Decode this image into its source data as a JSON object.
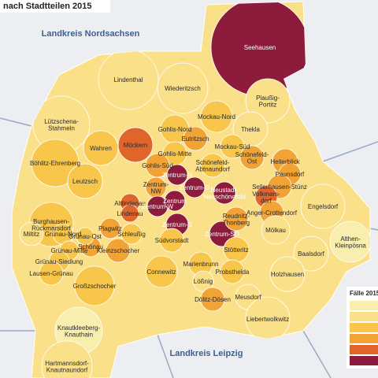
{
  "title": "nach Stadtteilen 2015",
  "regions": [
    "Landkreis Nordsachsen",
    "Landkreis Leipzig"
  ],
  "legend": {
    "title": "Fälle 2015",
    "colors": [
      "#f8eeae",
      "#fbe08a",
      "#f7c64a",
      "#f1a336",
      "#e0652a",
      "#8c1b3c"
    ]
  },
  "districts": [
    {
      "label": [
        "Seehausen"
      ],
      "level": 6
    },
    {
      "label": [
        "Lindenthal"
      ],
      "level": 2
    },
    {
      "label": [
        "Wiederitzsch"
      ],
      "level": 2
    },
    {
      "label": [
        "Plaußig-",
        "Portitz"
      ],
      "level": 2
    },
    {
      "label": [
        "Lützschena-",
        "Stahmeln"
      ],
      "level": 2
    },
    {
      "label": [
        "Mockau-Nord"
      ],
      "level": 3
    },
    {
      "label": [
        "Gohlis-Nord"
      ],
      "level": 3
    },
    {
      "label": [
        "Thekla"
      ],
      "level": 2
    },
    {
      "label": [
        "Möckern"
      ],
      "level": 5
    },
    {
      "label": [
        "Wahren"
      ],
      "level": 3
    },
    {
      "label": [
        "Gohlis-Mitte"
      ],
      "level": 3
    },
    {
      "label": [
        "Eutritzsch"
      ],
      "level": 4
    },
    {
      "label": [
        "Mockau-Süd"
      ],
      "level": 3
    },
    {
      "label": [
        "Schönefeld-",
        "Ost"
      ],
      "level": 4
    },
    {
      "label": [
        "Böhlitz-Ehrenberg"
      ],
      "level": 3
    },
    {
      "label": [
        "Leutzsch"
      ],
      "level": 3
    },
    {
      "label": [
        "Gohlis-Süd"
      ],
      "level": 4
    },
    {
      "label": [
        "Schönefeld-",
        "Abtnaundorf"
      ],
      "level": 3
    },
    {
      "label": [
        "Heiterblick"
      ],
      "level": 4
    },
    {
      "label": [
        "Paunsdorf"
      ],
      "level": 4
    },
    {
      "label": [
        "Sellerhausen-Stünz"
      ],
      "level": 4
    },
    {
      "label": [
        "Engelsdorf"
      ],
      "level": 2
    },
    {
      "label": [
        "Zentrum-N"
      ],
      "level": 6
    },
    {
      "label": [
        "Zentrum-",
        "NW"
      ],
      "level": 4
    },
    {
      "label": [
        "Zentrum-O"
      ],
      "level": 6
    },
    {
      "label": [
        "Neustadt-",
        "Neuschönefeld"
      ],
      "level": 6
    },
    {
      "label": [
        "Volkmars-",
        "dorf"
      ],
      "level": 5
    },
    {
      "label": [
        "Anger-Crottendorf"
      ],
      "level": 4
    },
    {
      "label": [
        "Burghausen-",
        "Rückmarsdorf"
      ],
      "level": 3
    },
    {
      "label": [
        "Altlindenau"
      ],
      "level": 5
    },
    {
      "label": [
        "Lindenau"
      ],
      "level": 5
    },
    {
      "label": [
        "Zentrum-W"
      ],
      "level": 6
    },
    {
      "label": [
        "Zentrum"
      ],
      "level": 6
    },
    {
      "label": [
        "Zentrum-S"
      ],
      "level": 6
    },
    {
      "label": [
        "Zentrum-SO"
      ],
      "level": 6
    },
    {
      "label": [
        "Plagwitz"
      ],
      "level": 4
    },
    {
      "label": [
        "Reudnitz-",
        "Thonberg"
      ],
      "level": 4
    },
    {
      "label": [
        "Mölkau"
      ],
      "level": 2
    },
    {
      "label": [
        "Baalsdorf"
      ],
      "level": 2
    },
    {
      "label": [
        "Althen-",
        "Kleinpösna"
      ],
      "level": 1
    },
    {
      "label": [
        "Miltitz"
      ],
      "level": 2
    },
    {
      "label": [
        "Grünau-Nord"
      ],
      "level": 3
    },
    {
      "label": [
        "Schönau"
      ],
      "level": 4
    },
    {
      "label": [
        "Grünau-Ost"
      ],
      "level": 3
    },
    {
      "label": [
        "Kleinzschocher"
      ],
      "level": 4
    },
    {
      "label": [
        "Schleußig"
      ],
      "level": 3
    },
    {
      "label": [
        "Südvorstadt"
      ],
      "level": 3
    },
    {
      "label": [
        "Stötteritz"
      ],
      "level": 3
    },
    {
      "label": [
        "Grünau-Mitte"
      ],
      "level": 3
    },
    {
      "label": [
        "Grünau-Siedlung"
      ],
      "level": 3
    },
    {
      "label": [
        "Lausen-Grünau"
      ],
      "level": 3
    },
    {
      "label": [
        "Connewitz"
      ],
      "level": 3
    },
    {
      "label": [
        "Marienbrunn"
      ],
      "level": 3
    },
    {
      "label": [
        "Probstheida"
      ],
      "level": 3
    },
    {
      "label": [
        "Holzhausen"
      ],
      "level": 2
    },
    {
      "label": [
        "Großzschocher"
      ],
      "level": 3
    },
    {
      "label": [
        "Lößnig"
      ],
      "level": 2
    },
    {
      "label": [
        "Meusdorf"
      ],
      "level": 2
    },
    {
      "label": [
        "Dölitz-Dösen"
      ],
      "level": 4
    },
    {
      "label": [
        "Liebertwolkwitz"
      ],
      "level": 2
    },
    {
      "label": [
        "Knautkleeberg-",
        "Knauthain"
      ],
      "level": 1
    },
    {
      "label": [
        "Hartmannsdorf-",
        "Knautnaundorf"
      ],
      "level": 2
    }
  ]
}
